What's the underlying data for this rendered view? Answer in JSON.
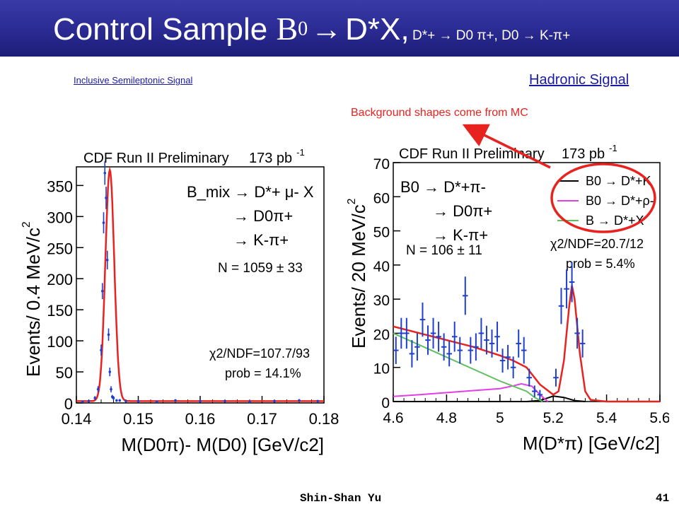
{
  "slide": {
    "title_main": "Control Sample ",
    "title_b": "B",
    "title_b_sup": "0",
    "title_arrow": "→",
    "title_dstar": "D*X,",
    "title_decay": "D*+ → D0 π+, D0 → K-π+",
    "link_left": "Inclusive  Semileptonic Signal",
    "link_right": "Hadronic Signal",
    "annotation": "Background shapes come from MC",
    "footer_name": "Shin-Shan Yu",
    "footer_page": "41"
  },
  "colors": {
    "title_bg": "#2a2a92",
    "fit": "#e8231f",
    "data_points": "#1f3fd0",
    "magenta": "#e23fe2",
    "green": "#5fbf5f",
    "annotation": "#e8231f"
  },
  "chart_data": [
    {
      "type": "line",
      "header": "CDF Run II Preliminary",
      "lumi": "173 pb",
      "lumi_exp": "-1",
      "ylabel": "Events/ 0.4 MeV/c",
      "ylabel_exp": "2",
      "xlabel": "M(D0π)- M(D0) [GeV/c2]",
      "xlim": [
        0.14,
        0.18
      ],
      "ylim": [
        0,
        380
      ],
      "x_ticks": [
        "0.14",
        "0.15",
        "0.16",
        "0.17",
        "0.18"
      ],
      "y_ticks": [
        "0",
        "50",
        "100",
        "150",
        "200",
        "250",
        "300",
        "350"
      ],
      "decay": [
        "B_mix → D*+ μ- X",
        "→ D0π+",
        "→ K-π+"
      ],
      "yield": "N = 1059 ± 33",
      "chi2": "χ2/NDF=107.7/93",
      "prob": "prob = 14.1%",
      "data": {
        "x": [
          0.141,
          0.142,
          0.143,
          0.1435,
          0.144,
          0.1442,
          0.1444,
          0.1446,
          0.1448,
          0.145,
          0.1452,
          0.1454,
          0.1456,
          0.1458,
          0.146,
          0.1465,
          0.147,
          0.148,
          0.15,
          0.153,
          0.156,
          0.16,
          0.164,
          0.168,
          0.172,
          0.176,
          0.179
        ],
        "y": [
          2,
          3,
          8,
          22,
          85,
          180,
          290,
          370,
          330,
          230,
          110,
          50,
          22,
          10,
          8,
          4,
          4,
          3,
          3,
          2,
          4,
          3,
          3,
          2,
          3,
          4,
          3
        ],
        "err": [
          1,
          2,
          3,
          5,
          9,
          13,
          17,
          19,
          18,
          15,
          10,
          7,
          5,
          3,
          3,
          2,
          2,
          2,
          2,
          1,
          2,
          2,
          2,
          1,
          2,
          2,
          2
        ]
      },
      "fit": {
        "peak_x": 0.1454,
        "amplitude": 372,
        "sigma": 0.00072,
        "background": 3
      }
    },
    {
      "type": "line",
      "header": "CDF Run II Preliminary",
      "lumi": "173 pb",
      "lumi_exp": "-1",
      "ylabel": "Events/ 20 MeV/c",
      "ylabel_exp": "2",
      "xlabel": "M(D*π) [GeV/c2]",
      "xlim": [
        4.6,
        5.6
      ],
      "ylim": [
        0,
        70
      ],
      "x_ticks": [
        "4.6",
        "4.8",
        "5",
        "5.2",
        "5.4",
        "5.6"
      ],
      "y_ticks": [
        "0",
        "10",
        "20",
        "30",
        "40",
        "50",
        "60",
        "70"
      ],
      "decay": [
        "B0 → D*+π-",
        "→ D0π+",
        "→ K-π+"
      ],
      "yield": "N = 106 ± 11",
      "chi2": "χ2/NDF=20.7/12",
      "prob": "prob = 5.4%",
      "legend": [
        {
          "label": "B0 → D*+K",
          "color": "#000000"
        },
        {
          "label": "B0 → D*+ρ-",
          "color": "#e23fe2"
        },
        {
          "label": "B → D*+X",
          "color": "#5fbf5f"
        }
      ],
      "data": {
        "x": [
          4.61,
          4.63,
          4.65,
          4.67,
          4.69,
          4.71,
          4.73,
          4.75,
          4.77,
          4.79,
          4.81,
          4.83,
          4.85,
          4.87,
          4.89,
          4.91,
          4.93,
          4.95,
          4.97,
          4.99,
          5.01,
          5.03,
          5.05,
          5.07,
          5.09,
          5.11,
          5.13,
          5.15,
          5.17,
          5.19,
          5.21,
          5.23,
          5.25,
          5.27,
          5.29,
          5.31,
          5.33,
          5.35,
          5.37,
          5.39,
          5.41,
          5.43,
          5.45,
          5.47,
          5.49,
          5.51,
          5.53,
          5.55,
          5.57,
          5.59
        ],
        "y": [
          15,
          20,
          20,
          14,
          16,
          24,
          18,
          20,
          19,
          16,
          14,
          19,
          15,
          31,
          15,
          16,
          20,
          18,
          17,
          19,
          12,
          13,
          10,
          17,
          15,
          7,
          3,
          2,
          0,
          0,
          7,
          28,
          33,
          35,
          20,
          17,
          0,
          0,
          0,
          0,
          0,
          0,
          0,
          0,
          0,
          0,
          0,
          0,
          0,
          0
        ],
        "err": [
          4,
          4.5,
          4.5,
          4,
          4,
          5,
          4.3,
          4.5,
          4.4,
          4,
          3.7,
          4.4,
          3.9,
          5.6,
          3.9,
          4,
          4.5,
          4.2,
          4.1,
          4.4,
          3.5,
          3.6,
          3.2,
          4.1,
          3.9,
          2.6,
          1.7,
          1.4,
          0,
          0,
          2.6,
          5.3,
          5.7,
          5.9,
          4.5,
          4.1,
          0,
          0,
          0,
          0,
          0,
          0,
          0,
          0,
          0,
          0,
          0,
          0,
          0,
          0
        ]
      },
      "fit_total": {
        "x": [
          4.6,
          4.7,
          4.8,
          4.9,
          5.0,
          5.05,
          5.1,
          5.15,
          5.2,
          5.22,
          5.24,
          5.26,
          5.27,
          5.28,
          5.3,
          5.32,
          5.34,
          5.4,
          5.5,
          5.6
        ],
        "y": [
          22,
          20,
          18,
          16,
          13.5,
          12,
          10,
          5,
          2,
          3,
          12,
          28,
          34,
          30,
          14,
          3,
          0.5,
          0,
          0,
          0
        ]
      },
      "bkg_xmix": {
        "x": [
          4.6,
          4.7,
          4.8,
          4.9,
          5.0,
          5.05,
          5.1,
          5.13,
          5.16
        ],
        "y": [
          20,
          16.5,
          13,
          9.5,
          6,
          4.5,
          3,
          1.2,
          0
        ]
      },
      "bkg_rho": {
        "x": [
          4.6,
          4.7,
          4.8,
          4.9,
          5.0,
          5.05,
          5.08,
          5.12,
          5.15,
          5.18
        ],
        "y": [
          1.5,
          2,
          2.6,
          3.2,
          3.8,
          4.6,
          5.2,
          4.5,
          2,
          0
        ]
      },
      "bkg_k": {
        "x": [
          4.6,
          5.0,
          5.1,
          5.15,
          5.2,
          5.24,
          5.28,
          5.32
        ],
        "y": [
          0,
          0,
          0,
          0.3,
          1.6,
          1.2,
          0.3,
          0
        ]
      }
    }
  ]
}
